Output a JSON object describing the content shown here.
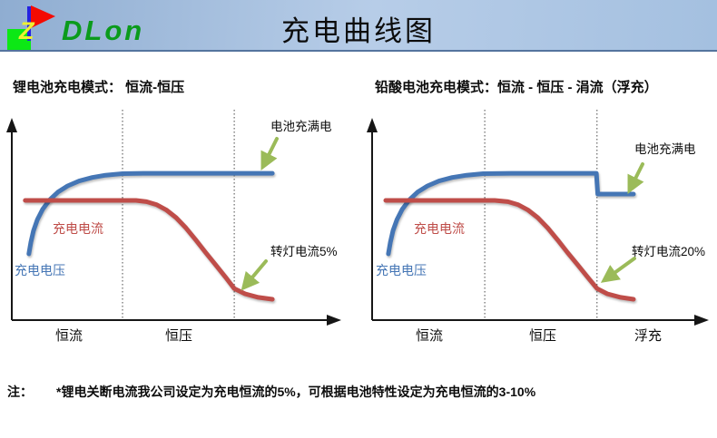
{
  "header": {
    "title": "充电曲线图",
    "logo": {
      "text": "DLon",
      "z": "Z"
    }
  },
  "note": {
    "prefix": "注：",
    "text": "*锂电关断电流我公司设定为充电恒流的5%，可根据电池特性设定为充电恒流的3-10%"
  },
  "colors": {
    "voltage": "#4576b5",
    "current": "#bf4d49",
    "arrow": "#9bbb59",
    "axis": "#161616"
  },
  "chart_data": [
    {
      "type": "line",
      "title": "锂电池充电模式： 恒流-恒压",
      "x_zone_labels": [
        "恒流",
        "恒压"
      ],
      "phase_boundaries_x": [
        0.337,
        0.677
      ],
      "labels": {
        "voltage": "充电电压",
        "current": "充电电流"
      },
      "annotations": [
        {
          "text": "电池充满电"
        },
        {
          "text": "转灯电流5%"
        }
      ],
      "axis_ranges": {
        "x": [
          0,
          1
        ],
        "y": [
          0,
          1
        ]
      },
      "grid": false,
      "series": [
        {
          "name": "充电电压",
          "color": "#4576b5",
          "x": [
            0.052,
            0.058,
            0.066,
            0.078,
            0.094,
            0.115,
            0.14,
            0.17,
            0.205,
            0.245,
            0.285,
            0.337,
            0.4,
            0.5,
            0.65,
            0.793
          ],
          "y": [
            0.315,
            0.37,
            0.425,
            0.478,
            0.527,
            0.571,
            0.608,
            0.638,
            0.661,
            0.678,
            0.689,
            0.696,
            0.698,
            0.698,
            0.698,
            0.698
          ]
        },
        {
          "name": "充电电流",
          "color": "#bf4d49",
          "x": [
            0.041,
            0.1,
            0.2,
            0.3,
            0.378,
            0.41,
            0.44,
            0.47,
            0.5,
            0.53,
            0.56,
            0.59,
            0.62,
            0.65,
            0.677,
            0.71,
            0.75,
            0.793
          ],
          "y": [
            0.569,
            0.569,
            0.569,
            0.569,
            0.569,
            0.563,
            0.549,
            0.524,
            0.487,
            0.438,
            0.381,
            0.321,
            0.264,
            0.205,
            0.15,
            0.125,
            0.108,
            0.099
          ]
        }
      ]
    },
    {
      "type": "line",
      "title": "铅酸电池充电模式：恒流 - 恒压 - 涓流（浮充）",
      "x_zone_labels": [
        "恒流",
        "恒压",
        "浮充"
      ],
      "phase_boundaries_x": [
        0.34,
        0.679
      ],
      "labels": {
        "voltage": "充电电压",
        "current": "充电电流"
      },
      "annotations": [
        {
          "text": "电池充满电"
        },
        {
          "text": "转灯电流20%"
        }
      ],
      "axis_ranges": {
        "x": [
          0,
          1
        ],
        "y": [
          0,
          1
        ]
      },
      "grid": false,
      "series": [
        {
          "name": "充电电压",
          "color": "#4576b5",
          "x": [
            0.049,
            0.055,
            0.063,
            0.075,
            0.091,
            0.112,
            0.137,
            0.167,
            0.202,
            0.242,
            0.285,
            0.335,
            0.42,
            0.55,
            0.677,
            0.679,
            0.681,
            0.789
          ],
          "y": [
            0.315,
            0.37,
            0.425,
            0.478,
            0.527,
            0.571,
            0.608,
            0.638,
            0.661,
            0.678,
            0.689,
            0.696,
            0.698,
            0.698,
            0.698,
            0.65,
            0.599,
            0.599
          ]
        },
        {
          "name": "充电电流",
          "color": "#bf4d49",
          "x": [
            0.041,
            0.1,
            0.2,
            0.3,
            0.37,
            0.41,
            0.44,
            0.47,
            0.5,
            0.53,
            0.56,
            0.59,
            0.62,
            0.65,
            0.679,
            0.71,
            0.75,
            0.789
          ],
          "y": [
            0.569,
            0.569,
            0.569,
            0.569,
            0.569,
            0.563,
            0.549,
            0.524,
            0.487,
            0.438,
            0.381,
            0.321,
            0.264,
            0.205,
            0.15,
            0.125,
            0.108,
            0.099
          ]
        }
      ]
    }
  ]
}
